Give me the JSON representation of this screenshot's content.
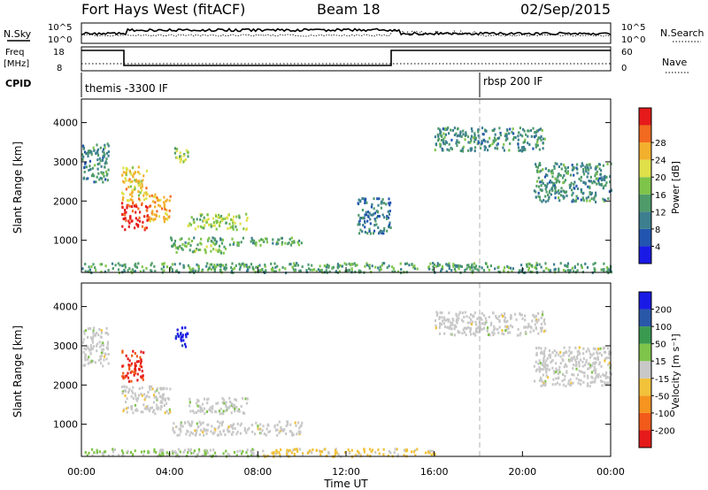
{
  "header": {
    "title": "Fort Hays West (fitACF)",
    "beam": "Beam 18",
    "date": "02/Sep/2015"
  },
  "top_panels": {
    "nsky_label": "N.Sky",
    "nsearch_label": "N.Search",
    "noise_ticks": [
      "10^5",
      "10^0"
    ],
    "freq_label": "Freq",
    "freq_unit": "[MHz]",
    "freq_ticks": [
      "18",
      "8"
    ],
    "nave_label": "Nave",
    "nave_ticks": [
      "60",
      "0"
    ],
    "cpid_label": "CPID",
    "cpid_segments": [
      "themis -3300 IF",
      "rbsp 200 IF"
    ]
  },
  "colorbars": {
    "power": {
      "label": "Power [dB]",
      "ticks": [
        "4",
        "8",
        "12",
        "16",
        "20",
        "24",
        "28"
      ],
      "colors": [
        "#1a1ae6",
        "#2255b0",
        "#3d7f8f",
        "#4f9c6a",
        "#7fc44a",
        "#dfe04a",
        "#f2b02c",
        "#f26a1f",
        "#e61a1a"
      ]
    },
    "velocity": {
      "label": "Velocity [m s⁻¹]",
      "ticks": [
        "-200",
        "-100",
        "-50",
        "-15",
        "15",
        "50",
        "100",
        "200"
      ],
      "colors": [
        "#e61a1a",
        "#f25a1a",
        "#f5941f",
        "#f2c23a",
        "#c8c8c8",
        "#7fc44a",
        "#3a9a50",
        "#2a58a8",
        "#1a1ae6"
      ]
    }
  },
  "axes": {
    "ylabel": "Slant Range [km]",
    "yticks": [
      "1000",
      "2000",
      "3000",
      "4000"
    ],
    "xlabel": "Time UT",
    "xticks": [
      "00:00",
      "04:00",
      "08:00",
      "12:00",
      "16:00",
      "20:00",
      "00:00"
    ]
  },
  "chart_data": [
    {
      "type": "heatmap",
      "name": "power",
      "xlabel": "Time UT",
      "ylabel": "Slant Range [km]",
      "xlim": [
        0,
        24
      ],
      "ylim": [
        180,
        4600
      ],
      "colorbar_label": "Power [dB]",
      "colorbar_range": [
        0,
        30
      ],
      "regions": [
        {
          "t": [
            0.0,
            1.2
          ],
          "r": [
            2500,
            3500
          ],
          "value": 10
        },
        {
          "t": [
            1.8,
            3.0
          ],
          "r": [
            1300,
            2000
          ],
          "value": 28
        },
        {
          "t": [
            1.8,
            3.0
          ],
          "r": [
            2000,
            2900
          ],
          "value": 20
        },
        {
          "t": [
            3.0,
            4.0
          ],
          "r": [
            1500,
            2200
          ],
          "value": 22
        },
        {
          "t": [
            4.2,
            4.8
          ],
          "r": [
            3000,
            3400
          ],
          "value": 16
        },
        {
          "t": [
            4.8,
            7.5
          ],
          "r": [
            1300,
            1700
          ],
          "value": 16
        },
        {
          "t": [
            4.0,
            10.0
          ],
          "r": [
            900,
            1100
          ],
          "value": 12
        },
        {
          "t": [
            4.0,
            6.5
          ],
          "r": [
            700,
            900
          ],
          "value": 14
        },
        {
          "t": [
            0.0,
            24.0
          ],
          "r": [
            200,
            450
          ],
          "value": 12
        },
        {
          "t": [
            16.0,
            21.0
          ],
          "r": [
            3300,
            3900
          ],
          "value": 10
        },
        {
          "t": [
            20.5,
            24.0
          ],
          "r": [
            2000,
            3000
          ],
          "value": 10
        },
        {
          "t": [
            12.5,
            14.0
          ],
          "r": [
            1200,
            2100
          ],
          "value": 8
        }
      ]
    },
    {
      "type": "heatmap",
      "name": "velocity",
      "xlabel": "Time UT",
      "ylabel": "Slant Range [km]",
      "xlim": [
        0,
        24
      ],
      "ylim": [
        180,
        4600
      ],
      "colorbar_label": "Velocity [m s⁻¹]",
      "colorbar_range": [
        -250,
        250
      ],
      "regions": [
        {
          "t": [
            0.0,
            1.2
          ],
          "r": [
            2500,
            3500
          ],
          "value": 0
        },
        {
          "t": [
            1.8,
            2.8
          ],
          "r": [
            2100,
            2900
          ],
          "value": -200
        },
        {
          "t": [
            1.8,
            4.0
          ],
          "r": [
            1300,
            2000
          ],
          "value": 0
        },
        {
          "t": [
            4.2,
            4.8
          ],
          "r": [
            3000,
            3500
          ],
          "value": 220
        },
        {
          "t": [
            4.8,
            7.5
          ],
          "r": [
            1300,
            1700
          ],
          "value": 10
        },
        {
          "t": [
            4.0,
            10.0
          ],
          "r": [
            750,
            1100
          ],
          "value": 0
        },
        {
          "t": [
            8.0,
            16.0
          ],
          "r": [
            200,
            400
          ],
          "value": -40
        },
        {
          "t": [
            0.0,
            8.0
          ],
          "r": [
            200,
            400
          ],
          "value": 30
        },
        {
          "t": [
            16.0,
            21.0
          ],
          "r": [
            3300,
            3900
          ],
          "value": 0
        },
        {
          "t": [
            20.5,
            24.0
          ],
          "r": [
            2000,
            3000
          ],
          "value": 0
        }
      ]
    }
  ]
}
